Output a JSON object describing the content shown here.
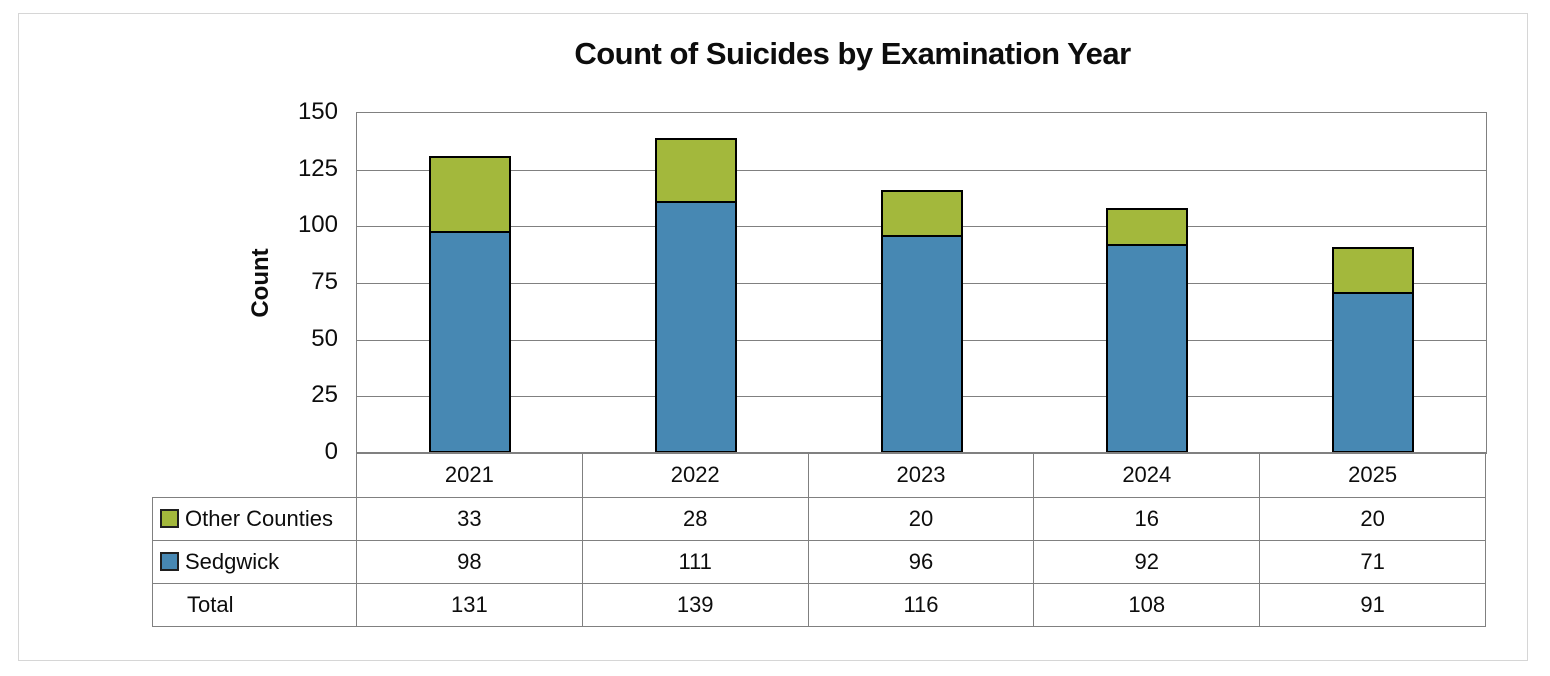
{
  "window": {
    "background": "#ffffff",
    "frame_border_color": "#d6d6d6"
  },
  "chart_data": {
    "type": "bar",
    "stacked": true,
    "title": "Count of Suicides by Examination Year",
    "xlabel": "",
    "ylabel": "Count",
    "categories": [
      "2021",
      "2022",
      "2023",
      "2024",
      "2025"
    ],
    "series": [
      {
        "name": "Sedgwick",
        "color": "#4788B3",
        "values": [
          98,
          111,
          96,
          92,
          71
        ]
      },
      {
        "name": "Other Counties",
        "color": "#A3B83C",
        "values": [
          33,
          28,
          20,
          16,
          20
        ]
      }
    ],
    "totals": [
      131,
      139,
      116,
      108,
      91
    ],
    "ylim": [
      0,
      150
    ],
    "yticks": [
      0,
      25,
      50,
      75,
      100,
      125,
      150
    ],
    "grid": true,
    "gridline_color": "#808080",
    "bar_border_color": "#000000",
    "legend_position": "table-left"
  },
  "table": {
    "border_color": "#808080",
    "header_values": [
      "2021",
      "2022",
      "2023",
      "2024",
      "2025"
    ],
    "rows": [
      {
        "label": "Other Counties",
        "swatch_color": "#A3B83C",
        "values": [
          "33",
          "28",
          "20",
          "16",
          "20"
        ]
      },
      {
        "label": "Sedgwick",
        "swatch_color": "#4788B3",
        "values": [
          "98",
          "111",
          "96",
          "92",
          "71"
        ]
      },
      {
        "label": "Total",
        "swatch_color": null,
        "values": [
          "131",
          "139",
          "116",
          "108",
          "91"
        ]
      }
    ]
  }
}
